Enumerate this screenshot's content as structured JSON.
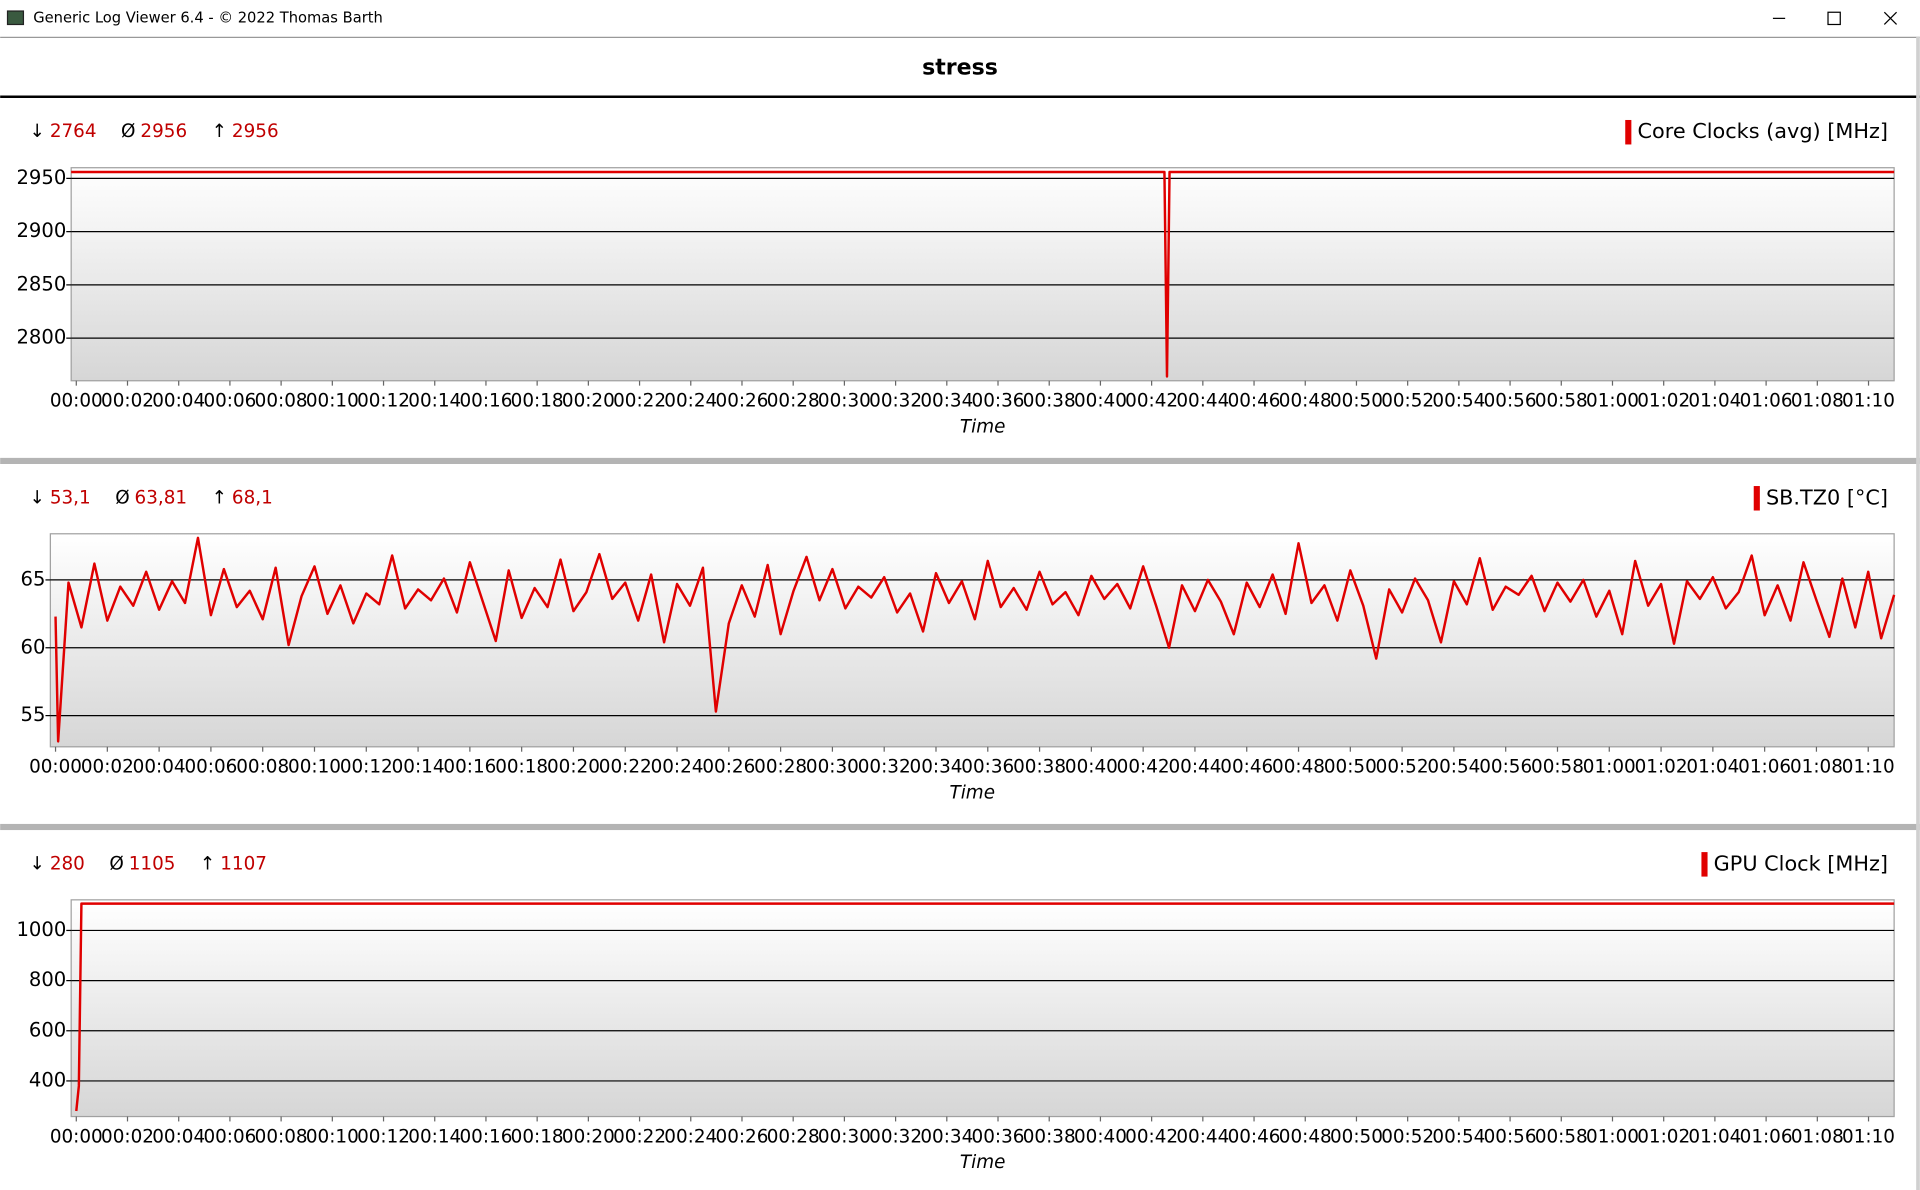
{
  "window": {
    "title": "Generic Log Viewer 6.4 - © 2022 Thomas Barth"
  },
  "header": {
    "title": "stress"
  },
  "chart_data": [
    {
      "type": "line",
      "stats": [
        {
          "symbol": "↓",
          "value": "2764"
        },
        {
          "symbol": "Ø",
          "value": "2956"
        },
        {
          "symbol": "↑",
          "value": "2956"
        }
      ],
      "xlabel": "Time",
      "grid": true,
      "xlim": [
        -0.2,
        71.0
      ],
      "ylim": [
        2760,
        2960
      ],
      "yticks": [
        2800,
        2850,
        2900,
        2950
      ],
      "xticks": [
        {
          "value": 0,
          "label": "00:00"
        },
        {
          "value": 2,
          "label": "00:02"
        },
        {
          "value": 4,
          "label": "00:04"
        },
        {
          "value": 6,
          "label": "00:06"
        },
        {
          "value": 8,
          "label": "00:08"
        },
        {
          "value": 10,
          "label": "00:10"
        },
        {
          "value": 12,
          "label": "00:12"
        },
        {
          "value": 14,
          "label": "00:14"
        },
        {
          "value": 16,
          "label": "00:16"
        },
        {
          "value": 18,
          "label": "00:18"
        },
        {
          "value": 20,
          "label": "00:20"
        },
        {
          "value": 22,
          "label": "00:22"
        },
        {
          "value": 24,
          "label": "00:24"
        },
        {
          "value": 26,
          "label": "00:26"
        },
        {
          "value": 28,
          "label": "00:28"
        },
        {
          "value": 30,
          "label": "00:30"
        },
        {
          "value": 32,
          "label": "00:32"
        },
        {
          "value": 34,
          "label": "00:34"
        },
        {
          "value": 36,
          "label": "00:36"
        },
        {
          "value": 38,
          "label": "00:38"
        },
        {
          "value": 40,
          "label": "00:40"
        },
        {
          "value": 42,
          "label": "00:42"
        },
        {
          "value": 44,
          "label": "00:44"
        },
        {
          "value": 46,
          "label": "00:46"
        },
        {
          "value": 48,
          "label": "00:48"
        },
        {
          "value": 50,
          "label": "00:50"
        },
        {
          "value": 52,
          "label": "00:52"
        },
        {
          "value": 54,
          "label": "00:54"
        },
        {
          "value": 56,
          "label": "00:56"
        },
        {
          "value": 58,
          "label": "00:58"
        },
        {
          "value": 60,
          "label": "01:00"
        },
        {
          "value": 62,
          "label": "01:02"
        },
        {
          "value": 64,
          "label": "01:04"
        },
        {
          "value": 66,
          "label": "01:06"
        },
        {
          "value": 68,
          "label": "01:08"
        },
        {
          "value": 70,
          "label": "01:10"
        }
      ],
      "x": [
        -0.2,
        42.5,
        42.6,
        42.7,
        71.0
      ],
      "series": [
        {
          "name": "Core Clocks (avg) [MHz]",
          "color": "#e00000",
          "values": [
            2956,
            2956,
            2764,
            2956,
            2956
          ]
        }
      ]
    },
    {
      "type": "line",
      "stats": [
        {
          "symbol": "↓",
          "value": "53,1"
        },
        {
          "symbol": "Ø",
          "value": "63,81"
        },
        {
          "symbol": "↑",
          "value": "68,1"
        }
      ],
      "xlabel": "Time",
      "grid": true,
      "xlim": [
        -0.2,
        71.0
      ],
      "ylim": [
        52.7,
        68.4
      ],
      "yticks": [
        55,
        60,
        65
      ],
      "xticks": [
        {
          "value": 0,
          "label": "00:00"
        },
        {
          "value": 2,
          "label": "00:02"
        },
        {
          "value": 4,
          "label": "00:04"
        },
        {
          "value": 6,
          "label": "00:06"
        },
        {
          "value": 8,
          "label": "00:08"
        },
        {
          "value": 10,
          "label": "00:10"
        },
        {
          "value": 12,
          "label": "00:12"
        },
        {
          "value": 14,
          "label": "00:14"
        },
        {
          "value": 16,
          "label": "00:16"
        },
        {
          "value": 18,
          "label": "00:18"
        },
        {
          "value": 20,
          "label": "00:20"
        },
        {
          "value": 22,
          "label": "00:22"
        },
        {
          "value": 24,
          "label": "00:24"
        },
        {
          "value": 26,
          "label": "00:26"
        },
        {
          "value": 28,
          "label": "00:28"
        },
        {
          "value": 30,
          "label": "00:30"
        },
        {
          "value": 32,
          "label": "00:32"
        },
        {
          "value": 34,
          "label": "00:34"
        },
        {
          "value": 36,
          "label": "00:36"
        },
        {
          "value": 38,
          "label": "00:38"
        },
        {
          "value": 40,
          "label": "00:40"
        },
        {
          "value": 42,
          "label": "00:42"
        },
        {
          "value": 44,
          "label": "00:44"
        },
        {
          "value": 46,
          "label": "00:46"
        },
        {
          "value": 48,
          "label": "00:48"
        },
        {
          "value": 50,
          "label": "00:50"
        },
        {
          "value": 52,
          "label": "00:52"
        },
        {
          "value": 54,
          "label": "00:54"
        },
        {
          "value": 56,
          "label": "00:56"
        },
        {
          "value": 58,
          "label": "00:58"
        },
        {
          "value": 60,
          "label": "01:00"
        },
        {
          "value": 62,
          "label": "01:02"
        },
        {
          "value": 64,
          "label": "01:04"
        },
        {
          "value": 66,
          "label": "01:06"
        },
        {
          "value": 68,
          "label": "01:08"
        },
        {
          "value": 70,
          "label": "01:10"
        }
      ],
      "x": [
        0,
        0.1,
        0.5,
        1.0,
        1.5,
        2.0,
        2.5,
        3.0,
        3.5,
        4.0,
        4.5,
        5.0,
        5.5,
        6.0,
        6.5,
        7.0,
        7.5,
        8.0,
        8.5,
        9.0,
        9.5,
        10.0,
        10.5,
        11.0,
        11.5,
        12.0,
        12.5,
        13.0,
        13.5,
        14.0,
        14.5,
        15.0,
        15.5,
        16.0,
        16.5,
        17.0,
        17.5,
        18.0,
        18.5,
        19.0,
        19.5,
        20.0,
        20.5,
        21.0,
        21.5,
        22.0,
        22.5,
        23.0,
        23.5,
        24.0,
        24.5,
        25.0,
        25.5,
        26.0,
        26.5,
        27.0,
        27.5,
        28.0,
        28.5,
        29.0,
        29.5,
        30.0,
        30.5,
        31.0,
        31.5,
        32.0,
        32.5,
        33.0,
        33.5,
        34.0,
        34.5,
        35.0,
        35.5,
        36.0,
        36.5,
        37.0,
        37.5,
        38.0,
        38.5,
        39.0,
        39.5,
        40.0,
        40.5,
        41.0,
        41.5,
        42.0,
        42.5,
        43.0,
        43.5,
        44.0,
        44.5,
        45.0,
        45.5,
        46.0,
        46.5,
        47.0,
        47.5,
        48.0,
        48.5,
        49.0,
        49.5,
        50.0,
        50.5,
        51.0,
        51.5,
        52.0,
        52.5,
        53.0,
        53.5,
        54.0,
        54.5,
        55.0,
        55.5,
        56.0,
        56.5,
        57.0,
        57.5,
        58.0,
        58.5,
        59.0,
        59.5,
        60.0,
        60.5,
        61.0,
        61.5,
        62.0,
        62.5,
        63.0,
        63.5,
        64.0,
        64.5,
        65.0,
        65.5,
        66.0,
        66.5,
        67.0,
        67.5,
        68.0,
        68.5,
        69.0,
        69.5,
        70.0,
        70.5,
        71.0
      ],
      "series": [
        {
          "name": "SB.TZ0 [°C]",
          "color": "#e00000",
          "values": [
            62.3,
            53.1,
            64.8,
            61.5,
            66.2,
            62.0,
            64.5,
            63.1,
            65.6,
            62.8,
            64.9,
            63.3,
            68.1,
            62.4,
            65.8,
            63.0,
            64.2,
            62.1,
            65.9,
            60.2,
            63.8,
            66.0,
            62.5,
            64.6,
            61.8,
            64.0,
            63.2,
            66.8,
            62.9,
            64.3,
            63.5,
            65.1,
            62.6,
            66.3,
            63.4,
            60.5,
            65.7,
            62.2,
            64.4,
            63.0,
            66.5,
            62.7,
            64.1,
            66.9,
            63.6,
            64.8,
            62.0,
            65.4,
            60.4,
            64.7,
            63.1,
            65.9,
            55.3,
            61.8,
            64.6,
            62.3,
            66.1,
            61.0,
            64.2,
            66.7,
            63.5,
            65.8,
            62.9,
            64.5,
            63.7,
            65.2,
            62.6,
            64.0,
            61.2,
            65.5,
            63.3,
            64.9,
            62.1,
            66.4,
            63.0,
            64.4,
            62.8,
            65.6,
            63.2,
            64.1,
            62.4,
            65.3,
            63.6,
            64.7,
            62.9,
            66.0,
            63.1,
            60.0,
            64.6,
            62.7,
            65.0,
            63.4,
            61.0,
            64.8,
            63.0,
            65.4,
            62.5,
            67.7,
            63.3,
            64.6,
            62.0,
            65.7,
            63.1,
            59.2,
            64.3,
            62.6,
            65.1,
            63.5,
            60.4,
            64.9,
            63.2,
            66.6,
            62.8,
            64.5,
            63.9,
            65.3,
            62.7,
            64.8,
            63.4,
            65.0,
            62.3,
            64.2,
            61.0,
            66.4,
            63.1,
            64.7,
            60.3,
            64.9,
            63.6,
            65.2,
            62.9,
            64.1,
            66.8,
            62.4,
            64.6,
            62.0,
            66.3,
            63.5,
            60.8,
            65.1,
            61.5,
            65.6,
            60.7,
            63.9
          ]
        }
      ]
    },
    {
      "type": "line",
      "stats": [
        {
          "symbol": "↓",
          "value": "280"
        },
        {
          "symbol": "Ø",
          "value": "1105"
        },
        {
          "symbol": "↑",
          "value": "1107"
        }
      ],
      "xlabel": "Time",
      "grid": true,
      "xlim": [
        -0.2,
        71.0
      ],
      "ylim": [
        258,
        1122
      ],
      "yticks": [
        400,
        600,
        800,
        1000
      ],
      "xticks": [
        {
          "value": 0,
          "label": "00:00"
        },
        {
          "value": 2,
          "label": "00:02"
        },
        {
          "value": 4,
          "label": "00:04"
        },
        {
          "value": 6,
          "label": "00:06"
        },
        {
          "value": 8,
          "label": "00:08"
        },
        {
          "value": 10,
          "label": "00:10"
        },
        {
          "value": 12,
          "label": "00:12"
        },
        {
          "value": 14,
          "label": "00:14"
        },
        {
          "value": 16,
          "label": "00:16"
        },
        {
          "value": 18,
          "label": "00:18"
        },
        {
          "value": 20,
          "label": "00:20"
        },
        {
          "value": 22,
          "label": "00:22"
        },
        {
          "value": 24,
          "label": "00:24"
        },
        {
          "value": 26,
          "label": "00:26"
        },
        {
          "value": 28,
          "label": "00:28"
        },
        {
          "value": 30,
          "label": "00:30"
        },
        {
          "value": 32,
          "label": "00:32"
        },
        {
          "value": 34,
          "label": "00:34"
        },
        {
          "value": 36,
          "label": "00:36"
        },
        {
          "value": 38,
          "label": "00:38"
        },
        {
          "value": 40,
          "label": "00:40"
        },
        {
          "value": 42,
          "label": "00:42"
        },
        {
          "value": 44,
          "label": "00:44"
        },
        {
          "value": 46,
          "label": "00:46"
        },
        {
          "value": 48,
          "label": "00:48"
        },
        {
          "value": 50,
          "label": "00:50"
        },
        {
          "value": 52,
          "label": "00:52"
        },
        {
          "value": 54,
          "label": "00:54"
        },
        {
          "value": 56,
          "label": "00:56"
        },
        {
          "value": 58,
          "label": "00:58"
        },
        {
          "value": 60,
          "label": "01:00"
        },
        {
          "value": 62,
          "label": "01:02"
        },
        {
          "value": 64,
          "label": "01:04"
        },
        {
          "value": 66,
          "label": "01:06"
        },
        {
          "value": 68,
          "label": "01:08"
        },
        {
          "value": 70,
          "label": "01:10"
        }
      ],
      "x": [
        0,
        0.1,
        0.2,
        71.0
      ],
      "series": [
        {
          "name": "GPU Clock [MHz]",
          "color": "#e00000",
          "values": [
            280,
            380,
            1107,
            1107
          ]
        }
      ]
    }
  ]
}
